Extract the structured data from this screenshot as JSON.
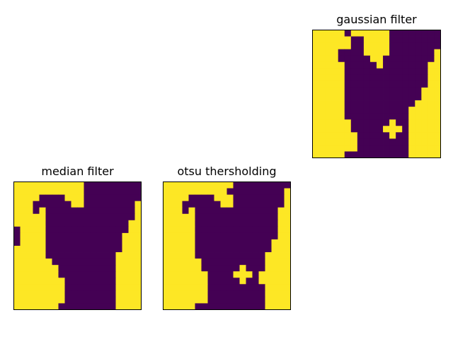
{
  "colors": {
    "background": "#fde725",
    "foreground": "#440154",
    "frame": "#000000"
  },
  "panels": {
    "gaussian": {
      "title": "gaussian filter"
    },
    "median": {
      "title": "median filter"
    },
    "otsu": {
      "title": "otsu thersholding"
    }
  },
  "chart_data": [
    {
      "type": "heatmap",
      "title": "gaussian filter",
      "rows": [
        "11111011111100000000",
        "11111100111100000000",
        "11111100111100000000",
        "11110000111100000001",
        "11110000011000000001",
        "11111000001000000011",
        "11111000000000000011",
        "11111000000000000011",
        "11111000000000000011",
        "11111000000000000111",
        "11111000000000000111",
        "11111000000000001111",
        "11111000000000011111",
        "11111000000000011111",
        "11111100000010011111",
        "11111100000111011111",
        "11111110000010011111",
        "11111110000000011111",
        "11111110000000011111",
        "11111000000000011111"
      ]
    },
    {
      "type": "heatmap",
      "title": "median filter",
      "rows": [
        "11111111111000000000",
        "11111111111000000000",
        "11110000111000000000",
        "11100000011000000001",
        "11101000000000000001",
        "11111000000000000001",
        "11111000000000000011",
        "01111000000000000011",
        "01111000000000000111",
        "01111000000000000111",
        "11111000000000000111",
        "11111000000000001111",
        "11111100000000001111",
        "11111110000000001111",
        "11111110000000001111",
        "11111111000000001111",
        "11111111000000001111",
        "11111111000000001111",
        "11111111000000001111",
        "11111110000000001111"
      ]
    },
    {
      "type": "heatmap",
      "title": "otsu thersholding",
      "rows": [
        "11111111111000000000",
        "11111111110000000001",
        "11110000111000000001",
        "11100000011000000001",
        "11101000000000000011",
        "11111000000000000011",
        "11111000000000000011",
        "11111000000000000011",
        "11111000000000000011",
        "11111000000000000111",
        "11111000000000000111",
        "11111000000000001111",
        "11111100000000001111",
        "11111100000010001111",
        "11111110000111011111",
        "11111110000010011111",
        "11111110000000001111",
        "11111110000000001111",
        "11111110000000001111",
        "11111000000000001111"
      ]
    }
  ]
}
